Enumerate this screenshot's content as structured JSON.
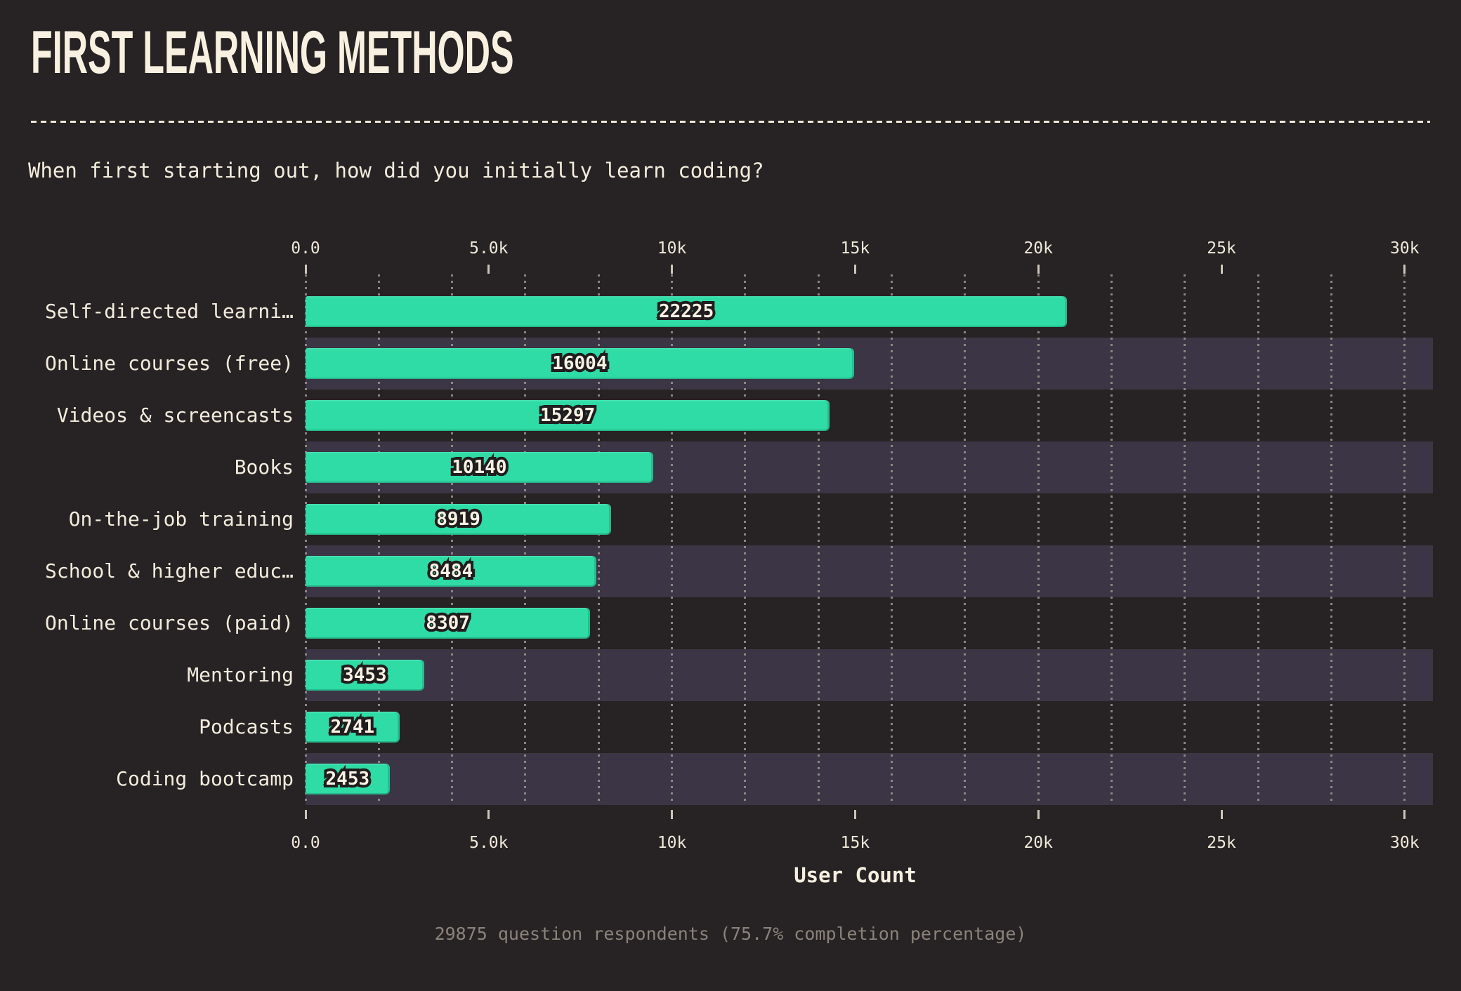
{
  "title": "FIRST LEARNING METHODS",
  "subtitle": "When first starting out, how did you initially learn coding?",
  "footer": "29875 question respondents (75.7% completion percentage)",
  "colors": {
    "background": "#272223",
    "bar_accent": "#2fdca6",
    "row_band": "#3b3545",
    "text_cream": "#f3ecdd",
    "muted_footer": "#8b837b",
    "grid_dots": "#918c85"
  },
  "chart_data": {
    "type": "bar",
    "orientation": "horizontal",
    "title": "FIRST LEARNING METHODS",
    "question": "When first starting out, how did you initially learn coding?",
    "xlabel": "User Count",
    "categories": [
      "Self-directed learni…",
      "Online courses (free)",
      "Videos & screencasts",
      "Books",
      "On-the-job training",
      "School & higher educ…",
      "Online courses (paid)",
      "Mentoring",
      "Podcasts",
      "Coding bootcamp"
    ],
    "values": [
      22225,
      16004,
      15297,
      10140,
      8919,
      8484,
      8307,
      3453,
      2741,
      2453
    ],
    "value_labels": [
      "22225",
      "16004",
      "15297",
      "10140",
      "8919",
      "8484",
      "8307",
      "3453",
      "2741",
      "2453"
    ],
    "ticks": {
      "values": [
        0,
        5000,
        10000,
        15000,
        20000,
        25000,
        30000
      ],
      "labels": [
        "0.0",
        "5.0k",
        "10k",
        "15k",
        "20k",
        "25k",
        "30k"
      ]
    },
    "layout": {
      "axis_max": 30770,
      "minor_grid_step": 2000,
      "bar_display_max": 32900,
      "grid": "dotted-vertical",
      "legend": "none",
      "zebra_rows": "odd"
    }
  }
}
